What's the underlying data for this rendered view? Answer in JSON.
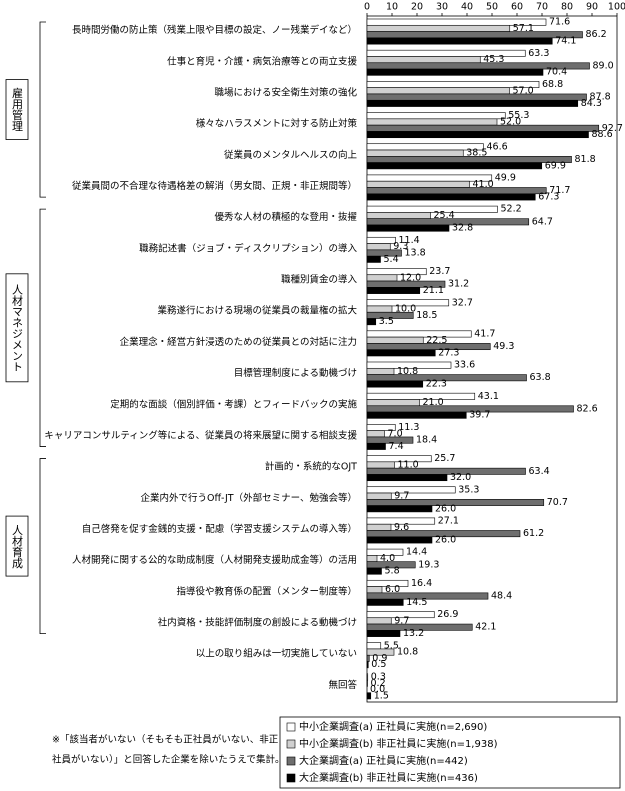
{
  "chart_data": {
    "type": "bar",
    "orientation": "horizontal",
    "groups": [
      {
        "label": "雇用管理",
        "categories": [
          "長時間労働の防止策（残業上限や目標の設定、ノー残業デイなど）",
          "仕事と育児・介護・病気治療等との両立支援",
          "職場における安全衛生対策の強化",
          "様々なハラスメントに対する防止対策",
          "従業員のメンタルヘルスの向上",
          "従業員間の不合理な待遇格差の解消（男女間、正規・非正規間等）"
        ]
      },
      {
        "label": "人材マネジメント",
        "categories": [
          "優秀な人材の積極的な登用・抜擢",
          "職務記述書（ジョブ・ディスクリプション）の導入",
          "職種別賃金の導入",
          "業務遂行における現場の従業員の裁量権の拡大",
          "企業理念・経営方針浸透のための従業員との対話に注力",
          "目標管理制度による動機づけ",
          "定期的な面談（個別評価・考課）とフィードバックの実施",
          "キャリアコンサルティング等による、従業員の将来展望に関する相談支援"
        ]
      },
      {
        "label": "人材育成",
        "categories": [
          "計画的・系統的なOJT",
          "企業内外で行うOff-JT（外部セミナー、勉強会等）",
          "自己啓発を促す金銭的支援・配慮（学習支援システムの導入等）",
          "人材開発に関する公的な助成制度（人材開発支援助成金等）の活用",
          "指導役や教育係の配置（メンター制度等）",
          "社内資格・技能評価制度の創設による動機づけ"
        ]
      },
      {
        "label": null,
        "categories": [
          "以上の取り組みは一切実施していない",
          "無回答"
        ]
      }
    ],
    "series": [
      {
        "name": "中小企業調査(a) 正社員に実施(n=2,690)",
        "color": "#ffffff",
        "values": [
          71.6,
          63.3,
          68.8,
          55.3,
          46.6,
          49.9,
          52.2,
          11.4,
          23.7,
          32.7,
          41.7,
          33.6,
          43.1,
          11.3,
          25.7,
          35.3,
          27.1,
          14.4,
          16.4,
          26.9,
          5.5,
          0.3
        ],
        "value_labels": [
          "71.6",
          "63.3",
          "68.8",
          "55.3",
          "46.6",
          "49.9",
          "52.2",
          "11.4",
          "23.7",
          "32.7",
          "41.7",
          "33.6",
          "43.1",
          "11.3",
          "25.7",
          "35.3",
          "27.1",
          "14.4",
          "16.4",
          "26.9",
          "5.5",
          "0.3"
        ]
      },
      {
        "name": "中小企業調査(b) 非正社員に実施(n=1,938)",
        "color": "#d0d0d0",
        "values": [
          57.1,
          45.3,
          57.0,
          52.0,
          38.5,
          41.0,
          25.4,
          9.3,
          12.0,
          10.0,
          22.5,
          10.8,
          21.0,
          7.0,
          11.0,
          9.7,
          9.6,
          4.0,
          6.0,
          9.7,
          10.8,
          0.2
        ],
        "value_labels": [
          "57.1",
          "45.3",
          "57.0",
          "52.0",
          "38.5",
          "41.0",
          "25.4",
          "9.3",
          "12.0",
          "10.0",
          "22.5",
          "10.8",
          "21.0",
          "7.0",
          "11.0",
          "9.7",
          "9.6",
          "4.0",
          "6.0",
          "9.7",
          "10.8",
          "0.2"
        ]
      },
      {
        "name": "大企業調査(a) 正社員に実施(n=442)",
        "color": "#6e6e6e",
        "values": [
          86.2,
          89.0,
          87.8,
          92.7,
          81.8,
          71.7,
          64.7,
          13.8,
          31.2,
          18.5,
          49.3,
          63.8,
          82.6,
          18.4,
          63.4,
          70.7,
          61.2,
          19.3,
          48.4,
          42.1,
          0.9,
          0.0
        ],
        "value_labels": [
          "86.2",
          "89.0",
          "87.8",
          "92.7",
          "81.8",
          "71.7",
          "64.7",
          "13.8",
          "31.2",
          "18.5",
          "49.3",
          "63.8",
          "82.6",
          "18.4",
          "63.4",
          "70.7",
          "61.2",
          "19.3",
          "48.4",
          "42.1",
          "0.9",
          "0.0"
        ]
      },
      {
        "name": "大企業調査(b) 非正社員に実施(n=436)",
        "color": "#000000",
        "values": [
          74.1,
          70.4,
          84.3,
          88.6,
          69.9,
          67.3,
          32.8,
          5.4,
          21.1,
          3.5,
          27.3,
          22.3,
          39.7,
          7.4,
          32.0,
          26.0,
          26.0,
          5.8,
          14.5,
          13.2,
          0.5,
          1.5
        ],
        "value_labels": [
          "74.1",
          "70.4",
          "84.3",
          "88.6",
          "69.9",
          "67.3",
          "32.8",
          "5.4",
          "21.1",
          "3.5",
          "27.3",
          "22.3",
          "39.7",
          "7.4",
          "32.0",
          "26.0",
          "26.0",
          "5.8",
          "14.5",
          "13.2",
          "0.5",
          "1.5"
        ]
      }
    ],
    "xlim": [
      0,
      100
    ],
    "xticks": [
      0,
      10,
      20,
      30,
      40,
      50,
      60,
      70,
      80,
      90,
      100
    ],
    "note": [
      "※「該当者がいない（そもそも正社員がいない、非正",
      "社員がいない）」と回答した企業を除いたうえで集計。"
    ]
  }
}
